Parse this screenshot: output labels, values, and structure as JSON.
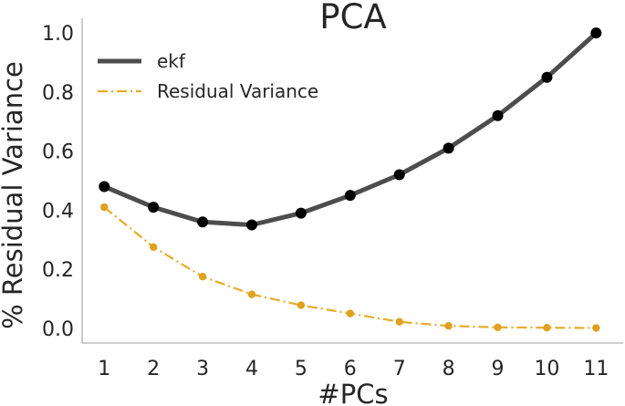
{
  "chart_data": {
    "type": "line",
    "title": "PCA",
    "xlabel": "#PCs",
    "ylabel": "% Residual Variance",
    "x": [
      1,
      2,
      3,
      4,
      5,
      6,
      7,
      8,
      9,
      10,
      11
    ],
    "xticks": [
      "1",
      "2",
      "3",
      "4",
      "5",
      "6",
      "7",
      "8",
      "9",
      "10",
      "11"
    ],
    "yticks": [
      "0.0",
      "0.2",
      "0.4",
      "0.6",
      "0.8",
      "1.0"
    ],
    "xlim": [
      0.55,
      11.55
    ],
    "ylim": [
      -0.05,
      1.05
    ],
    "grid": false,
    "legend_position": "top-left",
    "series": [
      {
        "name": "ekf",
        "values": [
          0.48,
          0.41,
          0.36,
          0.35,
          0.39,
          0.45,
          0.52,
          0.61,
          0.72,
          0.85,
          1.0
        ],
        "color": "#4d4d4d",
        "marker_color": "#000000",
        "line_style": "solid"
      },
      {
        "name": "Residual Variance",
        "values": [
          0.41,
          0.275,
          0.175,
          0.115,
          0.078,
          0.05,
          0.022,
          0.008,
          0.003,
          0.002,
          0.001
        ],
        "color": "#e5ac2a",
        "marker_color": "#e0a11f",
        "line_style": "dashdot"
      }
    ]
  }
}
